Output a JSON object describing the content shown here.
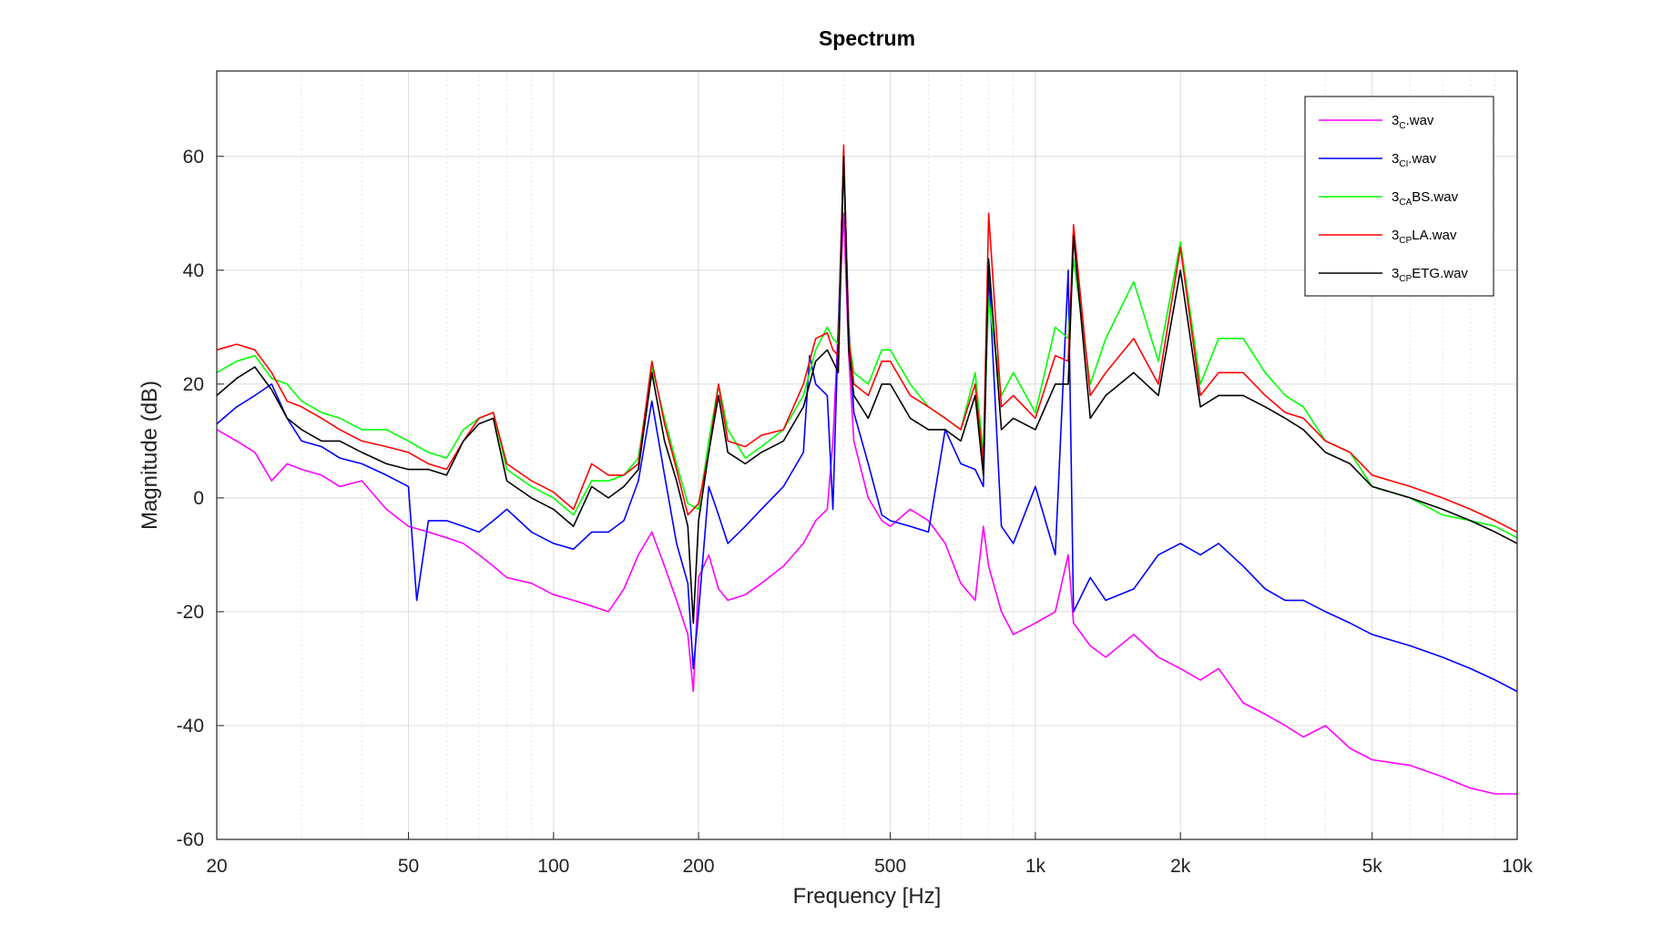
{
  "chart_data": {
    "type": "line",
    "title": "Spectrum",
    "xlabel": "Frequency [Hz]",
    "ylabel": "Magnitude (dB)",
    "x_scale": "log",
    "xlim": [
      20,
      10000
    ],
    "ylim": [
      -60,
      75
    ],
    "grid": true,
    "legend_position": "top-right",
    "x_ticks": [
      {
        "value": 20,
        "label": "20"
      },
      {
        "value": 50,
        "label": "50"
      },
      {
        "value": 100,
        "label": "100"
      },
      {
        "value": 200,
        "label": "200"
      },
      {
        "value": 500,
        "label": "500"
      },
      {
        "value": 1000,
        "label": "1k"
      },
      {
        "value": 2000,
        "label": "2k"
      },
      {
        "value": 5000,
        "label": "5k"
      },
      {
        "value": 10000,
        "label": "10k"
      }
    ],
    "y_ticks": [
      -60,
      -40,
      -20,
      0,
      20,
      40,
      60
    ],
    "series": [
      {
        "name_base": "3",
        "name_sub": "C",
        "name_tail": ".wav",
        "color": "#ff00ff",
        "x": [
          20,
          22,
          24,
          26,
          28,
          30,
          33,
          36,
          40,
          45,
          50,
          55,
          60,
          65,
          70,
          75,
          80,
          90,
          100,
          110,
          120,
          130,
          140,
          150,
          160,
          170,
          180,
          190,
          195,
          200,
          210,
          220,
          230,
          250,
          270,
          300,
          330,
          350,
          370,
          380,
          390,
          400,
          410,
          420,
          450,
          480,
          500,
          550,
          600,
          650,
          700,
          750,
          780,
          800,
          850,
          900,
          1000,
          1100,
          1170,
          1200,
          1300,
          1400,
          1600,
          1800,
          2000,
          2200,
          2400,
          2700,
          3000,
          3300,
          3600,
          4000,
          4500,
          5000,
          6000,
          7000,
          8000,
          9000,
          10000
        ],
        "y": [
          12,
          10,
          8,
          3,
          6,
          5,
          4,
          2,
          3,
          -2,
          -5,
          -6,
          -7,
          -8,
          -10,
          -12,
          -14,
          -15,
          -17,
          -18,
          -19,
          -20,
          -16,
          -10,
          -6,
          -12,
          -18,
          -24,
          -34,
          -14,
          -10,
          -16,
          -18,
          -17,
          -15,
          -12,
          -8,
          -4,
          -2,
          10,
          30,
          50,
          25,
          10,
          0,
          -4,
          -5,
          -2,
          -4,
          -8,
          -15,
          -18,
          -5,
          -12,
          -20,
          -24,
          -22,
          -20,
          -10,
          -22,
          -26,
          -28,
          -24,
          -28,
          -30,
          -32,
          -30,
          -36,
          -38,
          -40,
          -42,
          -40,
          -44,
          -46,
          -47,
          -49,
          -51,
          -52,
          -52
        ]
      },
      {
        "name_base": "3",
        "name_sub": "CI",
        "name_tail": ".wav",
        "color": "#0000ff",
        "x": [
          20,
          22,
          24,
          26,
          28,
          30,
          33,
          36,
          40,
          45,
          50,
          52,
          55,
          60,
          65,
          70,
          75,
          80,
          90,
          100,
          110,
          120,
          130,
          140,
          150,
          160,
          170,
          180,
          190,
          195,
          200,
          210,
          220,
          230,
          250,
          270,
          300,
          330,
          340,
          350,
          370,
          380,
          390,
          400,
          410,
          420,
          450,
          480,
          500,
          550,
          600,
          650,
          700,
          750,
          780,
          800,
          850,
          900,
          1000,
          1100,
          1170,
          1200,
          1300,
          1400,
          1600,
          1800,
          2000,
          2200,
          2400,
          2700,
          3000,
          3300,
          3600,
          4000,
          4500,
          5000,
          6000,
          7000,
          8000,
          9000,
          10000
        ],
        "y": [
          13,
          16,
          18,
          20,
          14,
          10,
          9,
          7,
          6,
          4,
          2,
          -18,
          -4,
          -4,
          -5,
          -6,
          -4,
          -2,
          -6,
          -8,
          -9,
          -6,
          -6,
          -4,
          3,
          17,
          4,
          -8,
          -15,
          -30,
          -20,
          2,
          -3,
          -8,
          -5,
          -2,
          2,
          8,
          25,
          20,
          18,
          -2,
          30,
          60,
          30,
          15,
          6,
          -3,
          -4,
          -5,
          -6,
          12,
          6,
          5,
          2,
          40,
          -5,
          -8,
          2,
          -10,
          40,
          -20,
          -14,
          -18,
          -16,
          -10,
          -8,
          -10,
          -8,
          -12,
          -16,
          -18,
          -18,
          -20,
          -22,
          -24,
          -26,
          -28,
          -30,
          -32,
          -34
        ]
      },
      {
        "name_base": "3",
        "name_sub": "CA",
        "name_tail": "BS.wav",
        "color": "#00ff00",
        "x": [
          20,
          22,
          24,
          26,
          28,
          30,
          33,
          36,
          40,
          45,
          50,
          55,
          60,
          65,
          70,
          75,
          80,
          90,
          100,
          110,
          120,
          130,
          140,
          150,
          160,
          170,
          180,
          190,
          200,
          210,
          220,
          230,
          250,
          270,
          300,
          330,
          350,
          370,
          380,
          390,
          400,
          410,
          420,
          450,
          480,
          500,
          550,
          600,
          650,
          700,
          750,
          780,
          800,
          850,
          900,
          1000,
          1100,
          1170,
          1200,
          1300,
          1400,
          1600,
          1800,
          2000,
          2200,
          2400,
          2700,
          3000,
          3300,
          3600,
          4000,
          4500,
          5000,
          6000,
          7000,
          8000,
          9000,
          10000
        ],
        "y": [
          22,
          24,
          25,
          21,
          20,
          17,
          15,
          14,
          12,
          12,
          10,
          8,
          7,
          12,
          14,
          15,
          5,
          2,
          0,
          -3,
          3,
          3,
          4,
          7,
          23,
          14,
          6,
          -1,
          -2,
          10,
          20,
          12,
          7,
          9,
          12,
          18,
          26,
          30,
          28,
          27,
          60,
          28,
          22,
          20,
          26,
          26,
          20,
          16,
          14,
          12,
          22,
          8,
          35,
          18,
          22,
          15,
          30,
          28,
          42,
          20,
          28,
          38,
          24,
          45,
          20,
          28,
          28,
          22,
          18,
          16,
          10,
          8,
          2,
          0,
          -3,
          -4,
          -5,
          -7
        ]
      },
      {
        "name_base": "3",
        "name_sub": "CP",
        "name_tail": "LA.wav",
        "color": "#ff0000",
        "x": [
          20,
          22,
          24,
          26,
          28,
          30,
          33,
          36,
          40,
          45,
          50,
          55,
          60,
          65,
          70,
          75,
          80,
          90,
          100,
          110,
          120,
          130,
          140,
          150,
          160,
          170,
          180,
          190,
          200,
          210,
          220,
          230,
          250,
          270,
          300,
          330,
          350,
          370,
          380,
          390,
          400,
          410,
          420,
          450,
          480,
          500,
          550,
          600,
          650,
          700,
          750,
          780,
          800,
          850,
          900,
          1000,
          1100,
          1170,
          1200,
          1300,
          1400,
          1600,
          1800,
          2000,
          2200,
          2400,
          2700,
          3000,
          3300,
          3600,
          4000,
          4500,
          5000,
          6000,
          7000,
          8000,
          9000,
          10000
        ],
        "y": [
          26,
          27,
          26,
          22,
          17,
          16,
          14,
          12,
          10,
          9,
          8,
          6,
          5,
          10,
          14,
          15,
          6,
          3,
          1,
          -2,
          6,
          4,
          4,
          6,
          24,
          13,
          5,
          -3,
          -1,
          8,
          20,
          10,
          9,
          11,
          12,
          20,
          28,
          29,
          26,
          25,
          62,
          28,
          20,
          18,
          24,
          24,
          18,
          16,
          14,
          12,
          20,
          6,
          50,
          16,
          18,
          14,
          25,
          24,
          48,
          18,
          22,
          28,
          20,
          44,
          18,
          22,
          22,
          18,
          15,
          14,
          10,
          8,
          4,
          2,
          0,
          -2,
          -4,
          -6
        ]
      },
      {
        "name_base": "3",
        "name_sub": "CP",
        "name_tail": "ETG.wav",
        "color": "#000000",
        "x": [
          20,
          22,
          24,
          26,
          28,
          30,
          33,
          36,
          40,
          45,
          50,
          55,
          60,
          65,
          70,
          75,
          80,
          90,
          100,
          110,
          120,
          130,
          140,
          150,
          160,
          170,
          180,
          190,
          195,
          200,
          210,
          220,
          230,
          250,
          270,
          300,
          330,
          350,
          370,
          380,
          390,
          400,
          410,
          420,
          450,
          480,
          500,
          550,
          600,
          650,
          700,
          750,
          780,
          800,
          850,
          900,
          1000,
          1100,
          1170,
          1200,
          1300,
          1400,
          1600,
          1800,
          2000,
          2200,
          2400,
          2700,
          3000,
          3300,
          3600,
          4000,
          4500,
          5000,
          6000,
          7000,
          8000,
          9000,
          10000
        ],
        "y": [
          18,
          21,
          23,
          19,
          14,
          12,
          10,
          10,
          8,
          6,
          5,
          5,
          4,
          10,
          13,
          14,
          3,
          0,
          -2,
          -5,
          2,
          0,
          2,
          5,
          22,
          10,
          3,
          -5,
          -22,
          -4,
          8,
          18,
          8,
          6,
          8,
          10,
          16,
          24,
          26,
          24,
          22,
          60,
          26,
          18,
          14,
          20,
          20,
          14,
          12,
          12,
          10,
          18,
          4,
          42,
          12,
          14,
          12,
          20,
          20,
          46,
          14,
          18,
          22,
          18,
          40,
          16,
          18,
          18,
          16,
          14,
          12,
          8,
          6,
          2,
          0,
          -2,
          -4,
          -6,
          -8
        ]
      }
    ]
  }
}
